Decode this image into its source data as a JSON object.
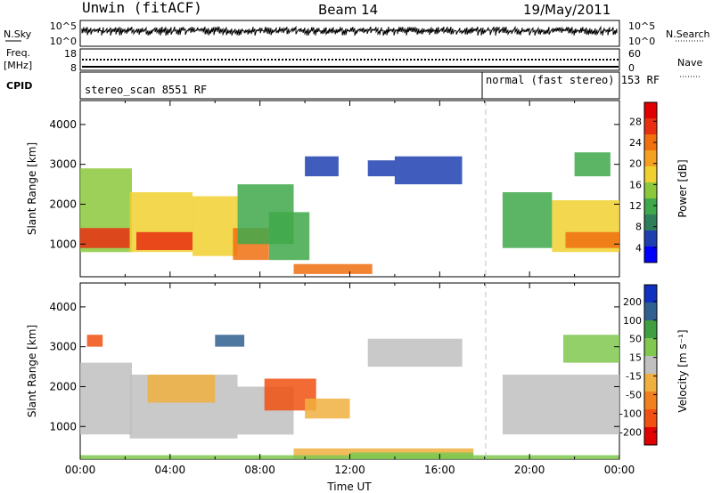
{
  "header": {
    "station": "Unwin (fitACF)",
    "beam": "Beam 14",
    "date": "19/May/2011"
  },
  "top_panel": {
    "left_label_nsky": "N.Sky",
    "left_label_freq_line1": "Freq.",
    "left_label_freq_line2": "[MHz]",
    "left_label_cpid": "CPID",
    "right_label_nsearch": "N.Search",
    "right_label_nave": "Nave",
    "noise_ticks_left": [
      "10^5",
      "10^0"
    ],
    "noise_ticks_right": [
      "10^5",
      "10^0"
    ],
    "freq_ticks": [
      "18",
      "8"
    ],
    "nave_ticks": [
      "60",
      "0"
    ],
    "cpid_segments": [
      {
        "label": "stereo_scan 8551 RF",
        "start_hour": 0
      },
      {
        "label": "normal (fast stereo) 153 RF",
        "start_hour": 18.05
      }
    ]
  },
  "chart_data": [
    {
      "type": "heatmap",
      "name": "power",
      "ylabel": "Slant Range [km]",
      "xlabel": "",
      "ylim": [
        180,
        4600
      ],
      "xlim": [
        0,
        24
      ],
      "yticks": [
        "1000",
        "2000",
        "3000",
        "4000"
      ],
      "ytick_values": [
        1000,
        2000,
        3000,
        4000
      ],
      "colorbar": {
        "label": "Power [dB]",
        "ticks": [
          "28",
          "24",
          "20",
          "16",
          "12",
          "8",
          "4"
        ],
        "tick_values": [
          28,
          24,
          20,
          16,
          12,
          8,
          4
        ],
        "range": [
          0,
          32
        ],
        "colors": [
          "#0000ff",
          "#1f3fb0",
          "#2e7d5b",
          "#3fa84a",
          "#8cc83c",
          "#f0d030",
          "#f5a020",
          "#f07010",
          "#e83010",
          "#e00000"
        ]
      },
      "regions": [
        {
          "t0": 0.0,
          "t1": 2.3,
          "r0": 800,
          "r1": 2900,
          "level": 14
        },
        {
          "t0": 0.0,
          "t1": 2.2,
          "r0": 900,
          "r1": 1400,
          "level": 26
        },
        {
          "t0": 2.2,
          "t1": 5.0,
          "r0": 800,
          "r1": 2300,
          "level": 16
        },
        {
          "t0": 2.5,
          "t1": 5.0,
          "r0": 850,
          "r1": 1300,
          "level": 27
        },
        {
          "t0": 5.0,
          "t1": 7.0,
          "r0": 700,
          "r1": 2200,
          "level": 18
        },
        {
          "t0": 6.8,
          "t1": 8.4,
          "r0": 600,
          "r1": 1400,
          "level": 24
        },
        {
          "t0": 7.0,
          "t1": 9.5,
          "r0": 1000,
          "r1": 2500,
          "level": 10
        },
        {
          "t0": 8.4,
          "t1": 10.2,
          "r0": 600,
          "r1": 1800,
          "level": 12
        },
        {
          "t0": 9.5,
          "t1": 13.0,
          "r0": 250,
          "r1": 500,
          "level": 24
        },
        {
          "t0": 10.0,
          "t1": 11.5,
          "r0": 2700,
          "r1": 3200,
          "level": 6
        },
        {
          "t0": 12.8,
          "t1": 14.0,
          "r0": 2700,
          "r1": 3100,
          "level": 6
        },
        {
          "t0": 14.0,
          "t1": 17.0,
          "r0": 2500,
          "r1": 3200,
          "level": 5
        },
        {
          "t0": 18.8,
          "t1": 21.0,
          "r0": 900,
          "r1": 2300,
          "level": 12
        },
        {
          "t0": 21.0,
          "t1": 24.0,
          "r0": 800,
          "r1": 2100,
          "level": 16
        },
        {
          "t0": 21.6,
          "t1": 24.0,
          "r0": 900,
          "r1": 1300,
          "level": 25
        },
        {
          "t0": 22.0,
          "t1": 23.6,
          "r0": 2700,
          "r1": 3300,
          "level": 10
        }
      ]
    },
    {
      "type": "heatmap",
      "name": "velocity",
      "ylabel": "Slant Range [km]",
      "xlabel": "Time UT",
      "ylim": [
        180,
        4600
      ],
      "xlim": [
        0,
        24
      ],
      "yticks": [
        "1000",
        "2000",
        "3000",
        "4000"
      ],
      "ytick_values": [
        1000,
        2000,
        3000,
        4000
      ],
      "xticks": [
        "00:00",
        "04:00",
        "08:00",
        "12:00",
        "16:00",
        "20:00",
        "00:00"
      ],
      "xtick_values": [
        0,
        4,
        8,
        12,
        16,
        20,
        24
      ],
      "colorbar": {
        "label": "Velocity [m s⁻¹]",
        "ticks": [
          "200",
          "100",
          "50",
          "15",
          "-15",
          "-50",
          "-100",
          "-200"
        ],
        "tick_values": [
          200,
          100,
          50,
          15,
          -15,
          -50,
          -100,
          -200
        ],
        "range": [
          -250,
          250
        ],
        "colors": [
          "#e00000",
          "#f05010",
          "#f08020",
          "#f0b040",
          "#c0c0c0",
          "#80c850",
          "#40a040",
          "#306090",
          "#1030c0"
        ]
      },
      "regions": [
        {
          "t0": 0.0,
          "t1": 2.3,
          "r0": 800,
          "r1": 2600,
          "level": 0
        },
        {
          "t0": 2.2,
          "t1": 7.0,
          "r0": 700,
          "r1": 2300,
          "level": 0
        },
        {
          "t0": 3.0,
          "t1": 6.0,
          "r0": 1600,
          "r1": 2300,
          "level": -40
        },
        {
          "t0": 7.0,
          "t1": 9.5,
          "r0": 800,
          "r1": 2000,
          "level": 0
        },
        {
          "t0": 8.2,
          "t1": 10.5,
          "r0": 1400,
          "r1": 2200,
          "level": -160
        },
        {
          "t0": 10.0,
          "t1": 12.0,
          "r0": 1200,
          "r1": 1700,
          "level": -60
        },
        {
          "t0": 9.5,
          "t1": 17.5,
          "r0": 200,
          "r1": 450,
          "level": -40
        },
        {
          "t0": 12.0,
          "t1": 17.5,
          "r0": 200,
          "r1": 350,
          "level": 40
        },
        {
          "t0": 0.0,
          "t1": 24.0,
          "r0": 180,
          "r1": 280,
          "level": 60
        },
        {
          "t0": 12.8,
          "t1": 17.0,
          "r0": 2500,
          "r1": 3200,
          "level": 0
        },
        {
          "t0": 18.8,
          "t1": 24.0,
          "r0": 800,
          "r1": 2300,
          "level": 0
        },
        {
          "t0": 21.5,
          "t1": 24.0,
          "r0": 2600,
          "r1": 3300,
          "level": 30
        },
        {
          "t0": 0.3,
          "t1": 1.0,
          "r0": 3000,
          "r1": 3300,
          "level": -160
        },
        {
          "t0": 6.0,
          "t1": 7.3,
          "r0": 3000,
          "r1": 3300,
          "level": 180
        }
      ]
    }
  ],
  "colors": {
    "guide_line": "#c0c0c0",
    "axes": "#000000"
  }
}
